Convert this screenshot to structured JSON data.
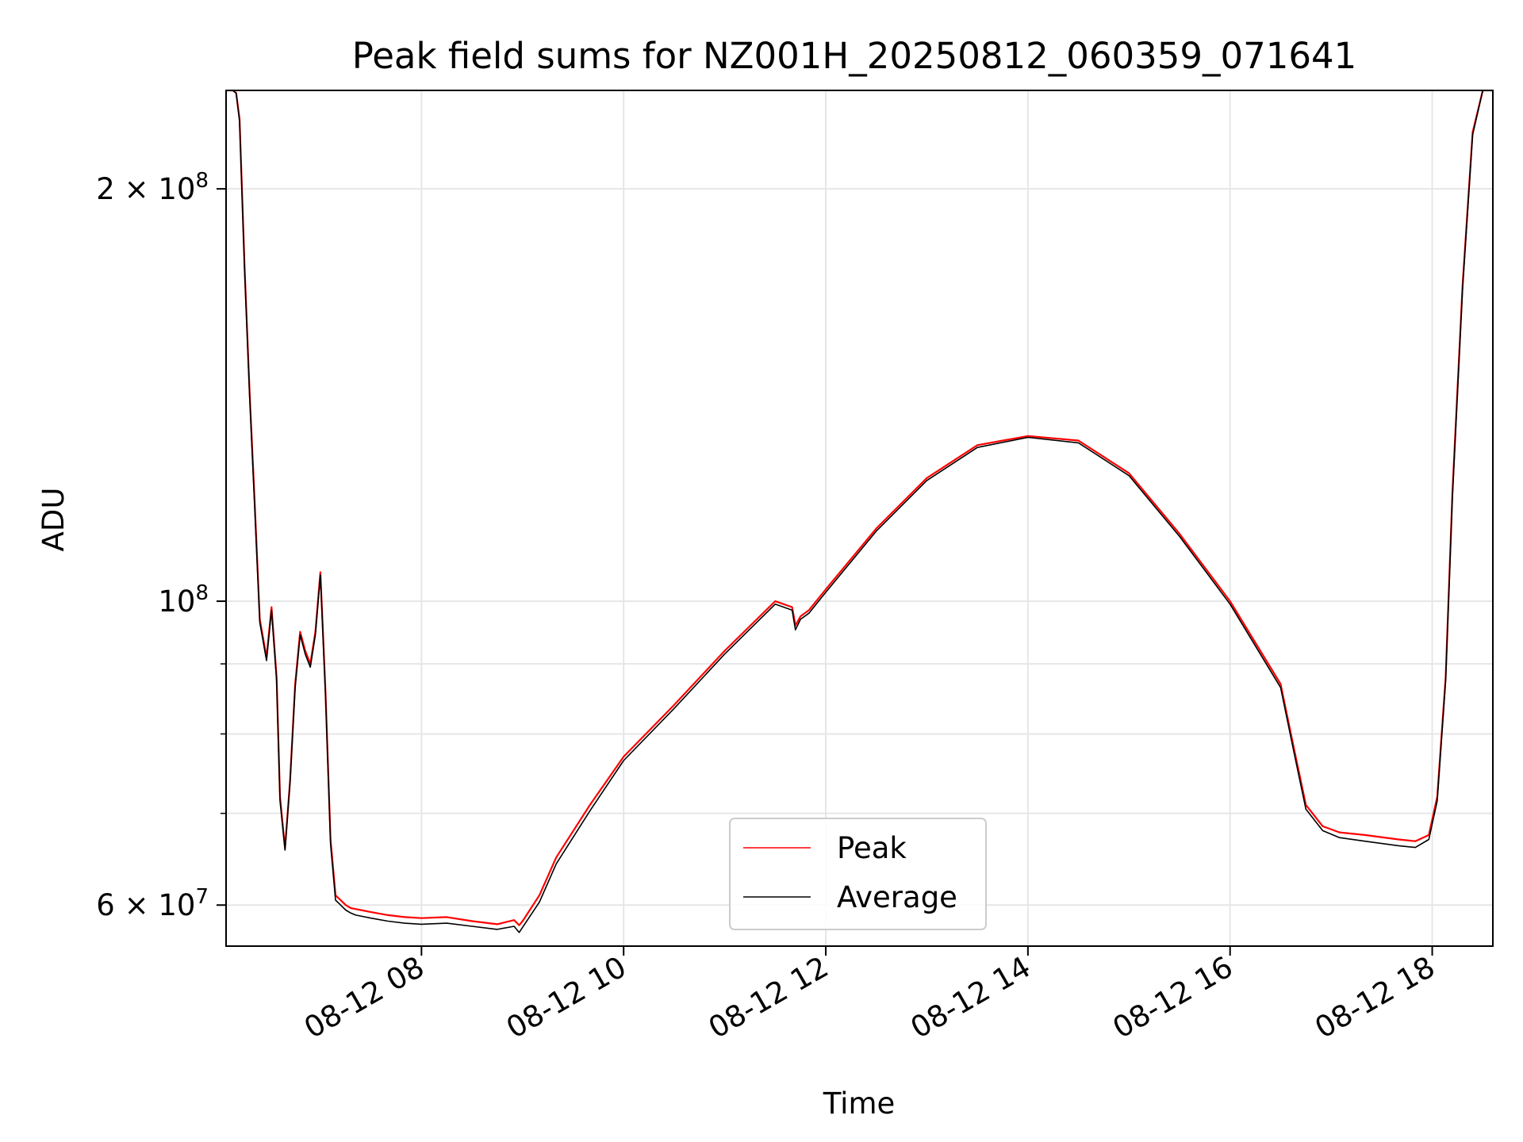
{
  "chart_data": {
    "type": "line",
    "title": "Peak field sums for NZ001H_20250812_060359_071641",
    "xlabel": "Time",
    "ylabel": "ADU",
    "yscale": "log",
    "xlim": [
      "08-12 06:04",
      "08-12 18:36"
    ],
    "ylim": [
      56000000,
      236000000
    ],
    "grid": true,
    "legend": "lower-center",
    "x_ticks": [
      "08-12 08",
      "08-12 10",
      "08-12 12",
      "08-12 14",
      "08-12 16",
      "08-12 18"
    ],
    "y_ticks": [
      {
        "value": 60000000,
        "label": "6 × 10^7",
        "mantissa": "6",
        "exp": "7"
      },
      {
        "value": 100000000,
        "label": "10^8",
        "mantissa": "",
        "exp": "8"
      },
      {
        "value": 200000000,
        "label": "2 × 10^8",
        "mantissa": "2",
        "exp": "8"
      }
    ],
    "y_minor": [
      70000000,
      80000000,
      90000000
    ],
    "series": [
      {
        "name": "Peak",
        "color": "#ff0000",
        "x": [
          "06:04",
          "06:08",
          "06:10",
          "06:12",
          "06:15",
          "06:18",
          "06:21",
          "06:24",
          "06:28",
          "06:31",
          "06:34",
          "06:36",
          "06:39",
          "06:42",
          "06:45",
          "06:48",
          "06:51",
          "06:54",
          "06:57",
          "07:00",
          "07:03",
          "07:06",
          "07:09",
          "07:12",
          "07:15",
          "07:18",
          "07:21",
          "07:24",
          "07:30",
          "07:40",
          "07:50",
          "08:00",
          "08:15",
          "08:30",
          "08:45",
          "08:55",
          "08:58",
          "09:00",
          "09:10",
          "09:20",
          "09:40",
          "10:00",
          "10:30",
          "11:00",
          "11:30",
          "11:40",
          "11:42",
          "11:45",
          "11:50",
          "12:00",
          "12:30",
          "13:00",
          "13:30",
          "14:00",
          "14:30",
          "15:00",
          "15:30",
          "16:00",
          "16:30",
          "16:38",
          "16:45",
          "16:55",
          "17:05",
          "17:20",
          "17:40",
          "17:50",
          "17:58",
          "18:03",
          "18:08",
          "18:12",
          "18:18",
          "18:24",
          "18:30",
          "18:36"
        ],
        "y": [
          236000000,
          236000000,
          235000000,
          225000000,
          175000000,
          142000000,
          118000000,
          97000000,
          91000000,
          99000000,
          88000000,
          72000000,
          66000000,
          74000000,
          87000000,
          95000000,
          92000000,
          90000000,
          95000000,
          105000000,
          86000000,
          67000000,
          61000000,
          60500000,
          60000000,
          59700000,
          59600000,
          59500000,
          59300000,
          59000000,
          58800000,
          58700000,
          58800000,
          58400000,
          58100000,
          58500000,
          58000000,
          58400000,
          61000000,
          65000000,
          71000000,
          77000000,
          84000000,
          92000000,
          100000000,
          99000000,
          96000000,
          97500000,
          98500000,
          102000000,
          113000000,
          123000000,
          130000000,
          132000000,
          131000000,
          124000000,
          112000000,
          100000000,
          87000000,
          78000000,
          71000000,
          68500000,
          67800000,
          67500000,
          67000000,
          66800000,
          67500000,
          72000000,
          88000000,
          120000000,
          170000000,
          220000000,
          236000000,
          236000000
        ]
      },
      {
        "name": "Average",
        "color": "#000000",
        "x": [
          "06:04",
          "06:08",
          "06:10",
          "06:12",
          "06:15",
          "06:18",
          "06:21",
          "06:24",
          "06:28",
          "06:31",
          "06:34",
          "06:36",
          "06:39",
          "06:42",
          "06:45",
          "06:48",
          "06:51",
          "06:54",
          "06:57",
          "07:00",
          "07:03",
          "07:06",
          "07:09",
          "07:12",
          "07:15",
          "07:18",
          "07:21",
          "07:24",
          "07:30",
          "07:40",
          "07:50",
          "08:00",
          "08:15",
          "08:30",
          "08:45",
          "08:55",
          "08:58",
          "09:00",
          "09:10",
          "09:20",
          "09:40",
          "10:00",
          "10:30",
          "11:00",
          "11:30",
          "11:40",
          "11:42",
          "11:45",
          "11:50",
          "12:00",
          "12:30",
          "13:00",
          "13:30",
          "14:00",
          "14:30",
          "15:00",
          "15:30",
          "16:00",
          "16:30",
          "16:38",
          "16:45",
          "16:55",
          "17:05",
          "17:20",
          "17:40",
          "17:50",
          "17:58",
          "18:03",
          "18:08",
          "18:12",
          "18:18",
          "18:24",
          "18:30",
          "18:36"
        ],
        "y": [
          236000000,
          236000000,
          235000000,
          224000000,
          174000000,
          141000000,
          117000000,
          96500000,
          90500000,
          98500000,
          87500000,
          71500000,
          65800000,
          73800000,
          86500000,
          94500000,
          91500000,
          89500000,
          94500000,
          104500000,
          85500000,
          66500000,
          60500000,
          60000000,
          59500000,
          59200000,
          59000000,
          58900000,
          58700000,
          58400000,
          58200000,
          58100000,
          58200000,
          57900000,
          57600000,
          57900000,
          57300000,
          57800000,
          60300000,
          64300000,
          70300000,
          76500000,
          83500000,
          91500000,
          99500000,
          98500000,
          95300000,
          97000000,
          98000000,
          101500000,
          112500000,
          122500000,
          129500000,
          131700000,
          130500000,
          123500000,
          111500000,
          99500000,
          86500000,
          77500000,
          70500000,
          68000000,
          67200000,
          66800000,
          66300000,
          66100000,
          67000000,
          71500000,
          87500000,
          119000000,
          169000000,
          219000000,
          236000000,
          236000000
        ]
      }
    ]
  }
}
